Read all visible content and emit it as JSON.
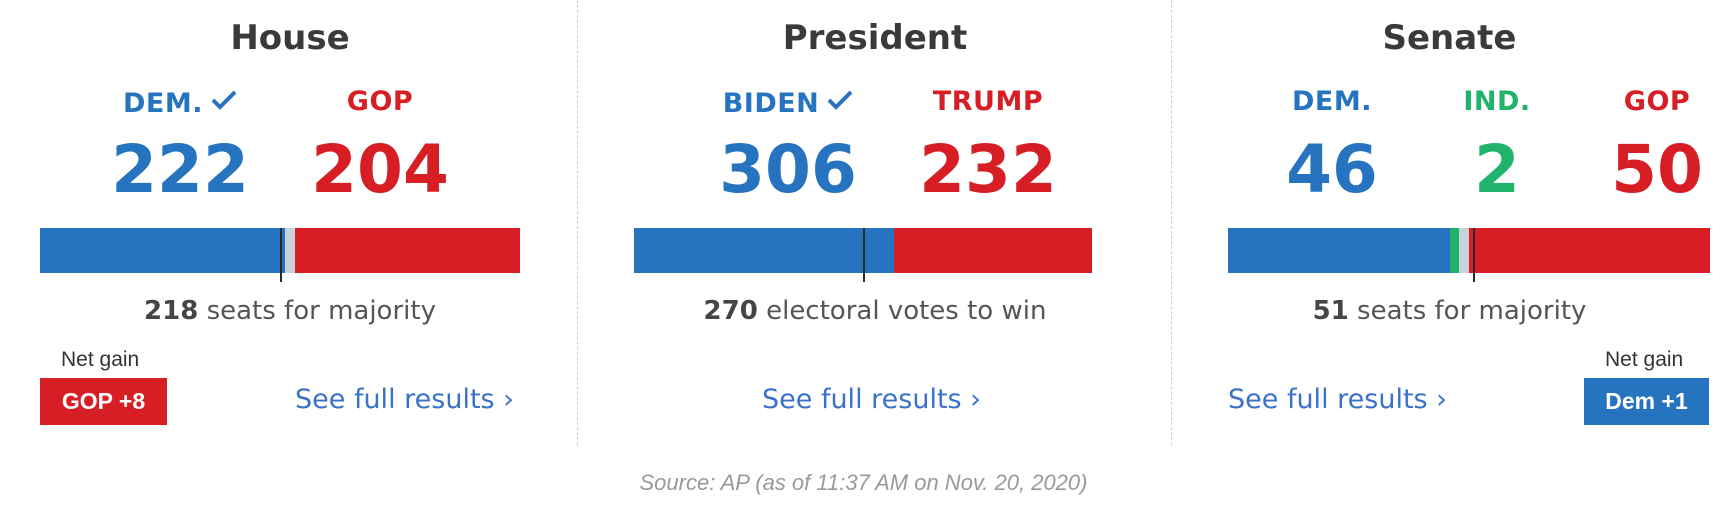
{
  "colors": {
    "dem": "#2673c0",
    "gop": "#d81e25",
    "ind": "#1fb36b",
    "neutral": "#c8d4dc"
  },
  "panels": {
    "house": {
      "title": "House",
      "parties": [
        {
          "label": "DEM.",
          "count": "222",
          "winner": true
        },
        {
          "label": "GOP",
          "count": "204",
          "winner": false
        }
      ],
      "threshold_num": "218",
      "threshold_text": "seats for majority",
      "link": "See full results ›",
      "net_gain_label": "Net gain",
      "net_gain_value": "GOP +8"
    },
    "president": {
      "title": "President",
      "parties": [
        {
          "label": "BIDEN",
          "count": "306",
          "winner": true
        },
        {
          "label": "TRUMP",
          "count": "232",
          "winner": false
        }
      ],
      "threshold_num": "270",
      "threshold_text": "electoral votes to win",
      "link": "See full results ›"
    },
    "senate": {
      "title": "Senate",
      "parties": [
        {
          "label": "DEM.",
          "count": "46",
          "winner": false
        },
        {
          "label": "IND.",
          "count": "2",
          "winner": false
        },
        {
          "label": "GOP",
          "count": "50",
          "winner": false
        }
      ],
      "threshold_num": "51",
      "threshold_text": "seats for majority",
      "link": "See full results ›",
      "net_gain_label": "Net gain",
      "net_gain_value": "Dem +1"
    }
  },
  "source": "Source: AP (as of 11:37 AM on Nov. 20, 2020)",
  "chart_data": [
    {
      "type": "bar",
      "title": "House",
      "total": 435,
      "threshold": 218,
      "series": [
        {
          "name": "DEM.",
          "values": [
            222
          ]
        },
        {
          "name": "GOP",
          "values": [
            204
          ]
        }
      ]
    },
    {
      "type": "bar",
      "title": "President",
      "total": 538,
      "threshold": 270,
      "series": [
        {
          "name": "BIDEN",
          "values": [
            306
          ]
        },
        {
          "name": "TRUMP",
          "values": [
            232
          ]
        }
      ]
    },
    {
      "type": "bar",
      "title": "Senate",
      "total": 100,
      "threshold": 51,
      "series": [
        {
          "name": "DEM.",
          "values": [
            46
          ]
        },
        {
          "name": "IND.",
          "values": [
            2
          ]
        },
        {
          "name": "GOP",
          "values": [
            50
          ]
        }
      ]
    }
  ]
}
